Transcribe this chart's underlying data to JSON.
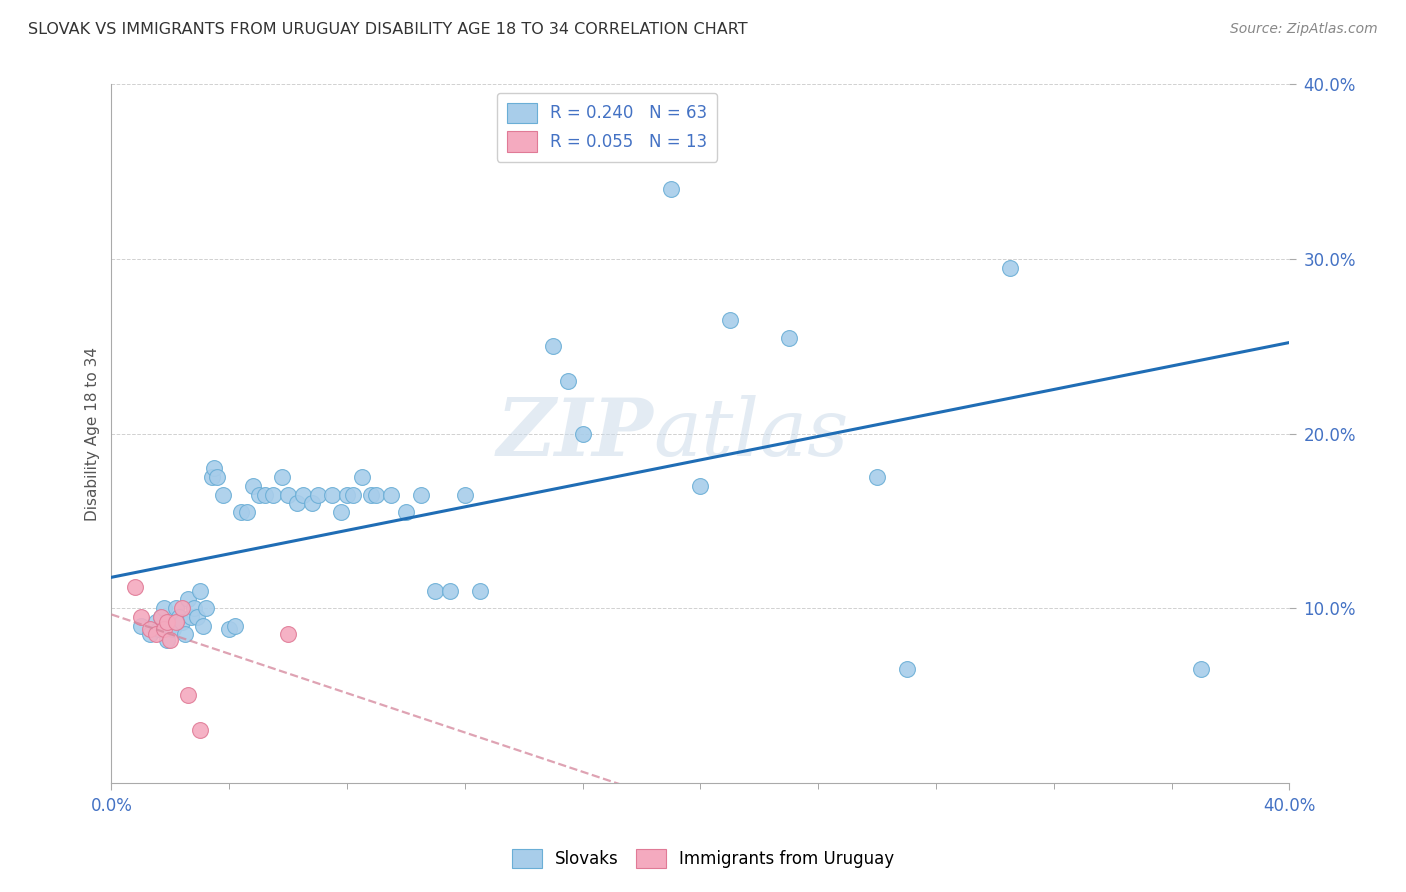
{
  "title": "SLOVAK VS IMMIGRANTS FROM URUGUAY DISABILITY AGE 18 TO 34 CORRELATION CHART",
  "source": "Source: ZipAtlas.com",
  "ylabel": "Disability Age 18 to 34",
  "xlim": [
    0.0,
    0.4
  ],
  "ylim": [
    0.0,
    0.4
  ],
  "xtick_positions": [
    0.0,
    0.4
  ],
  "xtick_labels": [
    "0.0%",
    "40.0%"
  ],
  "ytick_positions": [
    0.1,
    0.2,
    0.3,
    0.4
  ],
  "ytick_labels": [
    "10.0%",
    "20.0%",
    "30.0%",
    "40.0%"
  ],
  "blue_R": 0.24,
  "blue_N": 63,
  "pink_R": 0.055,
  "pink_N": 13,
  "blue_color": "#A8CDEA",
  "blue_edge": "#6AAED6",
  "pink_color": "#F4AABF",
  "pink_edge": "#E07A96",
  "trend_blue": "#1F6DB5",
  "trend_pink": "#D4849A",
  "watermark": "ZIPatlas",
  "blue_x": [
    0.01,
    0.013,
    0.015,
    0.016,
    0.017,
    0.018,
    0.019,
    0.02,
    0.021,
    0.022,
    0.023,
    0.024,
    0.025,
    0.026,
    0.027,
    0.028,
    0.029,
    0.03,
    0.031,
    0.032,
    0.034,
    0.035,
    0.036,
    0.038,
    0.04,
    0.042,
    0.044,
    0.046,
    0.048,
    0.05,
    0.052,
    0.055,
    0.058,
    0.06,
    0.063,
    0.065,
    0.068,
    0.07,
    0.075,
    0.078,
    0.08,
    0.082,
    0.085,
    0.088,
    0.09,
    0.095,
    0.1,
    0.105,
    0.11,
    0.115,
    0.12,
    0.125,
    0.15,
    0.155,
    0.16,
    0.19,
    0.2,
    0.21,
    0.23,
    0.26,
    0.27,
    0.305,
    0.37
  ],
  "blue_y": [
    0.09,
    0.085,
    0.092,
    0.088,
    0.095,
    0.1,
    0.082,
    0.09,
    0.088,
    0.1,
    0.095,
    0.092,
    0.085,
    0.105,
    0.095,
    0.1,
    0.095,
    0.11,
    0.09,
    0.1,
    0.175,
    0.18,
    0.175,
    0.165,
    0.088,
    0.09,
    0.155,
    0.155,
    0.17,
    0.165,
    0.165,
    0.165,
    0.175,
    0.165,
    0.16,
    0.165,
    0.16,
    0.165,
    0.165,
    0.155,
    0.165,
    0.165,
    0.175,
    0.165,
    0.165,
    0.165,
    0.155,
    0.165,
    0.11,
    0.11,
    0.165,
    0.11,
    0.25,
    0.23,
    0.2,
    0.34,
    0.17,
    0.265,
    0.255,
    0.175,
    0.065,
    0.295,
    0.065
  ],
  "pink_x": [
    0.008,
    0.01,
    0.013,
    0.015,
    0.017,
    0.018,
    0.019,
    0.02,
    0.022,
    0.024,
    0.026,
    0.03,
    0.06
  ],
  "pink_y": [
    0.112,
    0.095,
    0.088,
    0.085,
    0.095,
    0.088,
    0.092,
    0.082,
    0.092,
    0.1,
    0.05,
    0.03,
    0.085
  ]
}
